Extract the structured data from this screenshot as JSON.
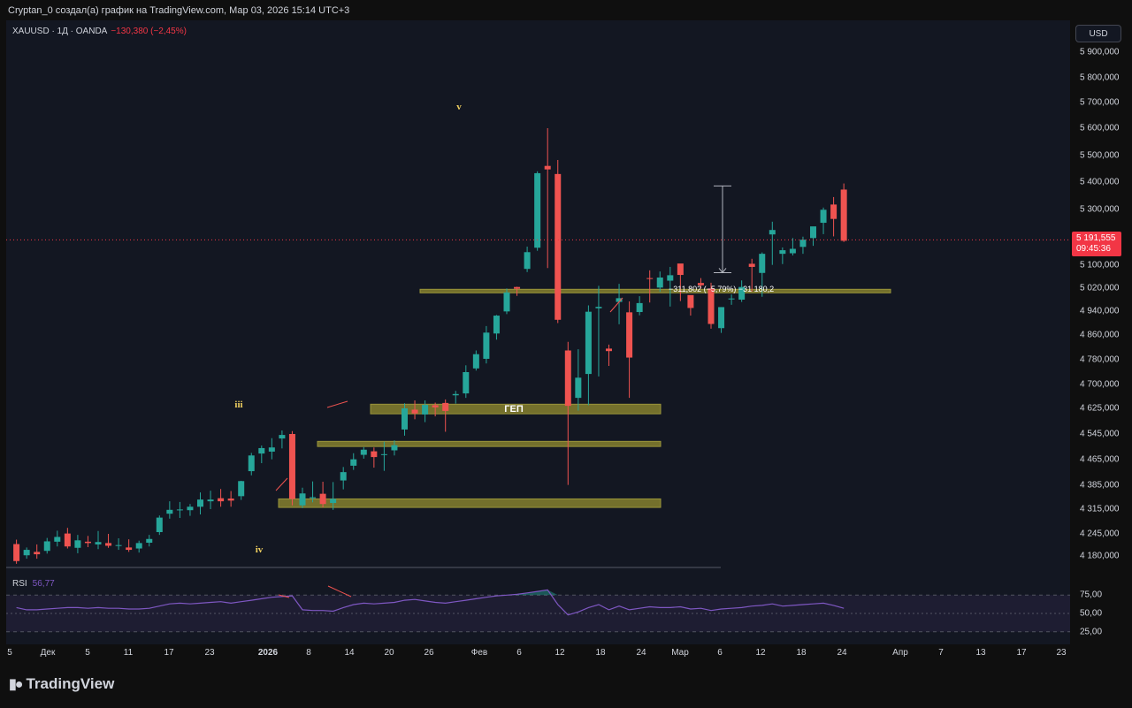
{
  "header": {
    "title": "Cryptan_0 создал(а) график на TradingView.com, Мар 03, 2026 15:14 UTC+3"
  },
  "symbol": {
    "label": "XAUUSD · 1Д · OANDA",
    "change": "−130,380 (−2,45%)"
  },
  "currency": "USD",
  "last_price": {
    "value": "5 191,555",
    "countdown": "09:45:36"
  },
  "measure_label": "−311,802 (−5,79%) −31 180,2",
  "gap_label": "ГЕП",
  "wave_labels": [
    "v",
    "iii",
    "iv"
  ],
  "rsi": {
    "name": "RSI",
    "value": "56,77",
    "axis": [
      {
        "v": 75,
        "label": "75,00"
      },
      {
        "v": 50,
        "label": "50,00"
      },
      {
        "v": 25,
        "label": "25,00"
      }
    ]
  },
  "price_axis": [
    {
      "v": 5900,
      "label": "5 900,000"
    },
    {
      "v": 5800,
      "label": "5 800,000"
    },
    {
      "v": 5700,
      "label": "5 700,000"
    },
    {
      "v": 5600,
      "label": "5 600,000"
    },
    {
      "v": 5500,
      "label": "5 500,000"
    },
    {
      "v": 5400,
      "label": "5 400,000"
    },
    {
      "v": 5300,
      "label": "5 300,000"
    },
    {
      "v": 5100,
      "label": "5 100,000"
    },
    {
      "v": 5020,
      "label": "5 020,000"
    },
    {
      "v": 4940,
      "label": "4 940,000"
    },
    {
      "v": 4860,
      "label": "4 860,000"
    },
    {
      "v": 4780,
      "label": "4 780,000"
    },
    {
      "v": 4700,
      "label": "4 700,000"
    },
    {
      "v": 4625,
      "label": "4 625,000"
    },
    {
      "v": 4545,
      "label": "4 545,000"
    },
    {
      "v": 4465,
      "label": "4 465,000"
    },
    {
      "v": 4385,
      "label": "4 385,000"
    },
    {
      "v": 4315,
      "label": "4 315,000"
    },
    {
      "v": 4245,
      "label": "4 245,000"
    },
    {
      "v": 4180,
      "label": "4 180,000"
    }
  ],
  "time_axis": [
    "5",
    "Дек",
    "5",
    "11",
    "17",
    "23",
    "2026",
    "8",
    "14",
    "20",
    "26",
    "Фев",
    "6",
    "12",
    "18",
    "24",
    "Мар",
    "6",
    "12",
    "18",
    "24",
    "Апр",
    "7",
    "13",
    "17",
    "23"
  ],
  "logo_text": "TradingView",
  "colors": {
    "up": "#26a69a",
    "down": "#ef5350",
    "zone": "#74702c",
    "rsi_line": "#7e57c2",
    "background": "#131722"
  },
  "chart_data": {
    "type": "candlestick",
    "symbol": "XAUUSD",
    "timeframe": "1D",
    "ylim": [
      4150,
      5950
    ],
    "candles": [
      [
        4215,
        4228,
        4157,
        4165
      ],
      [
        4182,
        4205,
        4172,
        4198
      ],
      [
        4192,
        4214,
        4172,
        4185
      ],
      [
        4195,
        4233,
        4187,
        4223
      ],
      [
        4222,
        4254,
        4208,
        4236
      ],
      [
        4246,
        4262,
        4202,
        4208
      ],
      [
        4204,
        4242,
        4188,
        4226
      ],
      [
        4222,
        4239,
        4206,
        4218
      ],
      [
        4214,
        4253,
        4200,
        4221
      ],
      [
        4218,
        4245,
        4204,
        4210
      ],
      [
        4210,
        4232,
        4198,
        4212
      ],
      [
        4205,
        4229,
        4192,
        4198
      ],
      [
        4202,
        4225,
        4190,
        4218
      ],
      [
        4219,
        4242,
        4208,
        4230
      ],
      [
        4250,
        4297,
        4242,
        4291
      ],
      [
        4302,
        4338,
        4288,
        4313
      ],
      [
        4312,
        4336,
        4290,
        4314
      ],
      [
        4312,
        4330,
        4296,
        4322
      ],
      [
        4322,
        4364,
        4300,
        4343
      ],
      [
        4338,
        4369,
        4315,
        4343
      ],
      [
        4347,
        4374,
        4322,
        4338
      ],
      [
        4346,
        4368,
        4322,
        4340
      ],
      [
        4353,
        4399,
        4342,
        4398
      ],
      [
        4429,
        4486,
        4416,
        4478
      ],
      [
        4484,
        4509,
        4454,
        4501
      ],
      [
        4490,
        4532,
        4466,
        4503
      ],
      [
        4531,
        4556,
        4500,
        4542
      ],
      [
        4545,
        4554,
        4326,
        4345
      ],
      [
        4326,
        4378,
        4318,
        4361
      ],
      [
        4347,
        4397,
        4335,
        4350
      ],
      [
        4360,
        4396,
        4320,
        4330
      ],
      [
        4333,
        4395,
        4313,
        4345
      ],
      [
        4400,
        4442,
        4373,
        4426
      ],
      [
        4446,
        4485,
        4433,
        4466
      ],
      [
        4480,
        4504,
        4468,
        4496
      ],
      [
        4491,
        4503,
        4440,
        4473
      ],
      [
        4482,
        4521,
        4430,
        4482
      ],
      [
        4494,
        4525,
        4478,
        4510
      ],
      [
        4559,
        4641,
        4540,
        4625
      ],
      [
        4621,
        4650,
        4591,
        4609
      ],
      [
        4606,
        4650,
        4582,
        4636
      ],
      [
        4635,
        4643,
        4600,
        4628
      ],
      [
        4642,
        4653,
        4552,
        4617
      ],
      [
        4666,
        4680,
        4640,
        4670
      ],
      [
        4672,
        4762,
        4658,
        4740
      ],
      [
        4752,
        4810,
        4745,
        4798
      ],
      [
        4783,
        4890,
        4768,
        4868
      ],
      [
        4865,
        4927,
        4845,
        4925
      ],
      [
        4939,
        5019,
        4930,
        5005
      ],
      [
        5024,
        5025,
        4993,
        5018
      ],
      [
        5087,
        5167,
        5076,
        5147
      ],
      [
        5163,
        5440,
        5152,
        5433
      ],
      [
        5460,
        5600,
        5090,
        5447
      ],
      [
        5430,
        5482,
        4900,
        4911
      ],
      [
        4810,
        4838,
        4386,
        4633
      ],
      [
        4658,
        4814,
        4618,
        4722
      ],
      [
        4734,
        4960,
        4635,
        4938
      ],
      [
        4950,
        5028,
        4726,
        4955
      ],
      [
        4816,
        4829,
        4760,
        4808
      ],
      [
        4972,
        5035,
        4896,
        4985
      ],
      [
        4936,
        4974,
        4658,
        4787
      ],
      [
        4937,
        4992,
        4926,
        4968
      ],
      [
        5055,
        5082,
        4970,
        5053
      ],
      [
        5022,
        5078,
        5007,
        5057
      ],
      [
        5046,
        5094,
        4956,
        5065
      ],
      [
        5106,
        5102,
        4975,
        5066
      ],
      [
        4996,
        4990,
        4925,
        4951
      ],
      [
        5038,
        5055,
        5019,
        5030
      ],
      [
        5019,
        5039,
        4881,
        4897
      ],
      [
        4883,
        4954,
        4867,
        4954
      ],
      [
        4984,
        4998,
        4962,
        4984
      ],
      [
        4980,
        5047,
        4972,
        5024
      ],
      [
        5105,
        5123,
        5008,
        5094
      ],
      [
        5073,
        5146,
        4990,
        5141
      ],
      [
        5211,
        5257,
        5101,
        5227
      ],
      [
        5141,
        5164,
        5104,
        5154
      ],
      [
        5143,
        5198,
        5135,
        5159
      ],
      [
        5166,
        5203,
        5141,
        5192
      ],
      [
        5198,
        5237,
        5170,
        5240
      ],
      [
        5253,
        5308,
        5212,
        5300
      ],
      [
        5319,
        5346,
        5204,
        5267
      ],
      [
        5373,
        5395,
        5184,
        5188
      ]
    ],
    "support_zones": [
      {
        "from": 5007,
        "to": 5016
      },
      {
        "from": 4608,
        "to": 4638
      },
      {
        "from": 4506,
        "to": 4522
      },
      {
        "from": 4320,
        "to": 4345
      }
    ],
    "measurement": {
      "from": 5386,
      "to": 5074,
      "change": -311.802,
      "percent": -5.79
    },
    "rsi_values": [
      58,
      55,
      55,
      56,
      57,
      58,
      58,
      57,
      58,
      57,
      57,
      56,
      56,
      57,
      60,
      63,
      64,
      63,
      64,
      65,
      66,
      64,
      66,
      68,
      70,
      72,
      73,
      74,
      55,
      54,
      54,
      53,
      58,
      62,
      64,
      63,
      64,
      65,
      68,
      69,
      67,
      65,
      64,
      66,
      68,
      70,
      72,
      74,
      75,
      76,
      78,
      80,
      82,
      62,
      48,
      52,
      58,
      62,
      55,
      60,
      55,
      57,
      59,
      58,
      58,
      59,
      56,
      57,
      54,
      56,
      57,
      58,
      60,
      61,
      63,
      60,
      61,
      62,
      63,
      64,
      61,
      57
    ]
  }
}
